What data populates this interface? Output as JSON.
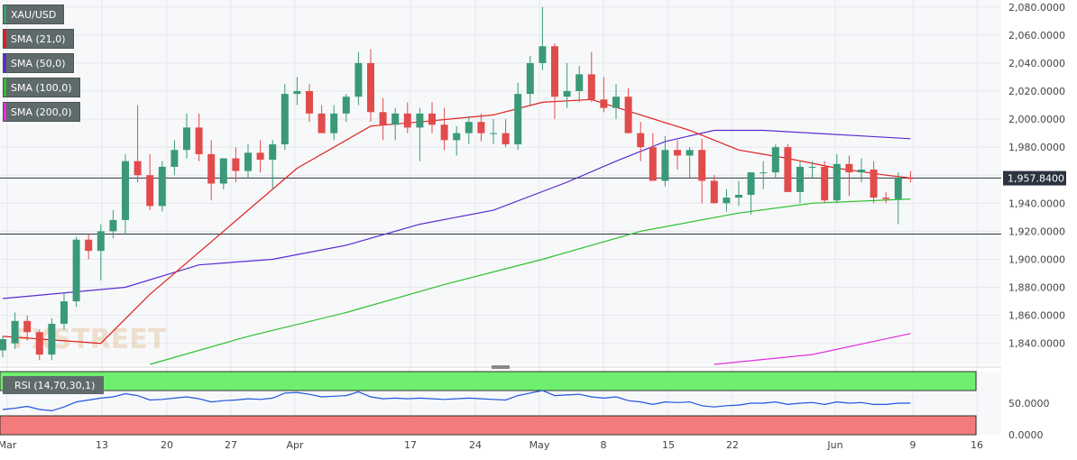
{
  "chart_data": {
    "type": "candlestick",
    "symbol": "XAU/USD",
    "current_price": "1,957.8400",
    "ylim": [
      1825,
      2085
    ],
    "y_ticks": [
      "2,080.0000",
      "2,060.0000",
      "2,040.0000",
      "2,020.0000",
      "2,000.0000",
      "1,980.0000",
      "1,960.0000",
      "1,940.0000",
      "1,920.0000",
      "1,900.0000",
      "1,880.0000",
      "1,860.0000",
      "1,840.0000"
    ],
    "x_ticks": [
      "Mar",
      "13",
      "20",
      "27",
      "Apr",
      "17",
      "24",
      "May",
      "8",
      "15",
      "22",
      "Jun",
      "9",
      "16"
    ],
    "horizontal_lines": [
      1958,
      1918
    ],
    "legend": [
      {
        "label": "XAU/USD",
        "color": "#3aa06a"
      },
      {
        "label": "SMA (21,0)",
        "color": "#e0201c"
      },
      {
        "label": "SMA (50,0)",
        "color": "#5a2bd0"
      },
      {
        "label": "SMA (100,0)",
        "color": "#2ec02e"
      },
      {
        "label": "SMA (200,0)",
        "color": "#e030e0"
      }
    ],
    "candles": [
      [
        1835,
        1845,
        1830,
        1843
      ],
      [
        1840,
        1862,
        1836,
        1856
      ],
      [
        1856,
        1860,
        1842,
        1848
      ],
      [
        1848,
        1850,
        1828,
        1832
      ],
      [
        1832,
        1858,
        1828,
        1854
      ],
      [
        1854,
        1876,
        1850,
        1870
      ],
      [
        1870,
        1916,
        1866,
        1914
      ],
      [
        1914,
        1918,
        1900,
        1906
      ],
      [
        1906,
        1925,
        1885,
        1920
      ],
      [
        1920,
        1935,
        1915,
        1928
      ],
      [
        1928,
        1975,
        1918,
        1970
      ],
      [
        1970,
        2010,
        1955,
        1960
      ],
      [
        1960,
        1975,
        1935,
        1938
      ],
      [
        1938,
        1970,
        1934,
        1966
      ],
      [
        1966,
        1985,
        1960,
        1978
      ],
      [
        1978,
        2004,
        1972,
        1994
      ],
      [
        1994,
        2004,
        1970,
        1975
      ],
      [
        1975,
        1985,
        1942,
        1954
      ],
      [
        1954,
        1972,
        1950,
        1972
      ],
      [
        1972,
        1980,
        1955,
        1963
      ],
      [
        1963,
        1982,
        1958,
        1976
      ],
      [
        1976,
        1985,
        1962,
        1971
      ],
      [
        1971,
        1985,
        1950,
        1982
      ],
      [
        1982,
        2025,
        1978,
        2018
      ],
      [
        2018,
        2030,
        2010,
        2020
      ],
      [
        2020,
        2025,
        1998,
        2004
      ],
      [
        2004,
        2010,
        1992,
        1990
      ],
      [
        1990,
        2010,
        1985,
        2004
      ],
      [
        2004,
        2018,
        1998,
        2016
      ],
      [
        2016,
        2048,
        2010,
        2040
      ],
      [
        2040,
        2050,
        1998,
        2005
      ],
      [
        2005,
        2015,
        1985,
        1996
      ],
      [
        1996,
        2008,
        1985,
        2004
      ],
      [
        2004,
        2012,
        1990,
        1994
      ],
      [
        1994,
        2008,
        1970,
        2004
      ],
      [
        2004,
        2012,
        1990,
        1996
      ],
      [
        1996,
        2008,
        1978,
        1985
      ],
      [
        1985,
        1995,
        1974,
        1990
      ],
      [
        1990,
        2002,
        1982,
        1998
      ],
      [
        1998,
        2004,
        1984,
        1990
      ],
      [
        1990,
        2000,
        1982,
        1990
      ],
      [
        1990,
        2000,
        1980,
        1982
      ],
      [
        1982,
        2026,
        1978,
        2018
      ],
      [
        2018,
        2045,
        2010,
        2040
      ],
      [
        2040,
        2080,
        2035,
        2052
      ],
      [
        2052,
        2054,
        2000,
        2016
      ],
      [
        2016,
        2040,
        2008,
        2020
      ],
      [
        2020,
        2038,
        2012,
        2032
      ],
      [
        2032,
        2048,
        2012,
        2014
      ],
      [
        2014,
        2030,
        2005,
        2008
      ],
      [
        2008,
        2025,
        2000,
        2016
      ],
      [
        2016,
        2022,
        1990,
        1990
      ],
      [
        1990,
        1998,
        1970,
        1980
      ],
      [
        1980,
        1990,
        1956,
        1956
      ],
      [
        1956,
        1988,
        1952,
        1978
      ],
      [
        1978,
        1985,
        1964,
        1974
      ],
      [
        1974,
        1980,
        1958,
        1978
      ],
      [
        1978,
        1986,
        1940,
        1956
      ],
      [
        1956,
        1960,
        1940,
        1940
      ],
      [
        1940,
        1950,
        1934,
        1944
      ],
      [
        1944,
        1956,
        1938,
        1946
      ],
      [
        1946,
        1962,
        1932,
        1962
      ],
      [
        1962,
        1970,
        1950,
        1962
      ],
      [
        1962,
        1982,
        1958,
        1980
      ],
      [
        1980,
        1982,
        1948,
        1948
      ],
      [
        1948,
        1970,
        1940,
        1966
      ],
      [
        1966,
        1970,
        1958,
        1966
      ],
      [
        1966,
        1970,
        1940,
        1942
      ],
      [
        1942,
        1975,
        1940,
        1968
      ],
      [
        1968,
        1974,
        1945,
        1962
      ],
      [
        1962,
        1972,
        1955,
        1964
      ],
      [
        1964,
        1970,
        1940,
        1944
      ],
      [
        1944,
        1948,
        1940,
        1943
      ],
      [
        1943,
        1962,
        1925,
        1958
      ],
      [
        1958,
        1963,
        1955,
        1957.84
      ]
    ],
    "sma21_endpoints": [
      [
        0,
        1845
      ],
      [
        8,
        1840
      ],
      [
        12,
        1875
      ],
      [
        18,
        1920
      ],
      [
        24,
        1965
      ],
      [
        30,
        1995
      ],
      [
        34,
        1998
      ],
      [
        40,
        2003
      ],
      [
        44,
        2012
      ],
      [
        48,
        2014
      ],
      [
        52,
        2003
      ],
      [
        56,
        1992
      ],
      [
        60,
        1978
      ],
      [
        64,
        1972
      ],
      [
        68,
        1965
      ],
      [
        72,
        1960
      ],
      [
        74,
        1958
      ]
    ],
    "sma50_endpoints": [
      [
        0,
        1872
      ],
      [
        10,
        1880
      ],
      [
        16,
        1896
      ],
      [
        22,
        1900
      ],
      [
        28,
        1910
      ],
      [
        34,
        1925
      ],
      [
        40,
        1935
      ],
      [
        46,
        1955
      ],
      [
        50,
        1970
      ],
      [
        54,
        1984
      ],
      [
        58,
        1992
      ],
      [
        62,
        1992
      ],
      [
        66,
        1990
      ],
      [
        70,
        1988
      ],
      [
        74,
        1986
      ]
    ],
    "sma100_endpoints": [
      [
        12,
        1825
      ],
      [
        20,
        1845
      ],
      [
        28,
        1862
      ],
      [
        36,
        1882
      ],
      [
        44,
        1900
      ],
      [
        52,
        1920
      ],
      [
        60,
        1933
      ],
      [
        66,
        1940
      ],
      [
        74,
        1943
      ]
    ],
    "sma200_endpoints": [
      [
        58,
        1825
      ],
      [
        66,
        1832
      ],
      [
        74,
        1847
      ]
    ],
    "rsi": {
      "label": "RSI (14,70,30,1)",
      "ylim": [
        0,
        100
      ],
      "y_ticks": [
        "50.0000",
        "0.0000"
      ],
      "overbought": 70,
      "oversold": 30,
      "values": [
        40,
        42,
        45,
        40,
        38,
        44,
        52,
        55,
        58,
        60,
        65,
        62,
        55,
        56,
        58,
        60,
        57,
        52,
        54,
        55,
        57,
        56,
        58,
        66,
        67,
        64,
        60,
        61,
        62,
        68,
        60,
        57,
        58,
        57,
        58,
        57,
        56,
        57,
        58,
        57,
        56,
        55,
        62,
        66,
        70,
        62,
        63,
        64,
        60,
        58,
        60,
        54,
        52,
        48,
        52,
        51,
        52,
        46,
        44,
        46,
        47,
        50,
        50,
        52,
        48,
        50,
        51,
        48,
        52,
        50,
        51,
        48,
        48,
        50,
        50
      ]
    }
  }
}
